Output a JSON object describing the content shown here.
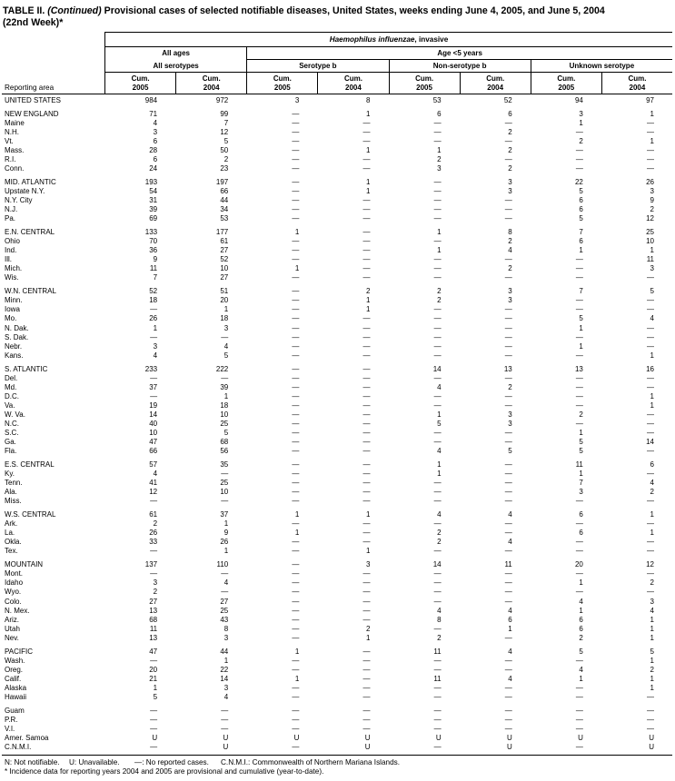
{
  "title": {
    "table_label": "TABLE II.",
    "continued": "(Continued)",
    "text": "Provisional cases of selected notifiable diseases, United States, weeks ending June 4, 2005, and June 5, 2004",
    "line2": "(22nd Week)*"
  },
  "table": {
    "disease_name_italic": "Haemophilus influenzae",
    "disease_name_suffix": ", invasive",
    "col_group_all_ages": "All ages",
    "col_group_age_under5": "Age <5 years",
    "subgroups": [
      "All serotypes",
      "Serotype b",
      "Non-serotype b",
      "Unknown serotype"
    ],
    "cum_label": "Cum.",
    "years": [
      "2005",
      "2004",
      "2005",
      "2004",
      "2005",
      "2004",
      "2005",
      "2004"
    ],
    "reporting_area_label": "Reporting area",
    "rows": [
      {
        "label": "UNITED STATES",
        "gap": false,
        "values": [
          "984",
          "972",
          "3",
          "8",
          "53",
          "52",
          "94",
          "97"
        ]
      },
      {
        "label": "NEW ENGLAND",
        "gap": true,
        "values": [
          "71",
          "99",
          "—",
          "1",
          "6",
          "6",
          "3",
          "1"
        ]
      },
      {
        "label": "Maine",
        "gap": false,
        "values": [
          "4",
          "7",
          "—",
          "—",
          "—",
          "—",
          "1",
          "—"
        ]
      },
      {
        "label": "N.H.",
        "gap": false,
        "values": [
          "3",
          "12",
          "—",
          "—",
          "—",
          "2",
          "—",
          "—"
        ]
      },
      {
        "label": "Vt.",
        "gap": false,
        "values": [
          "6",
          "5",
          "—",
          "—",
          "—",
          "—",
          "2",
          "1"
        ]
      },
      {
        "label": "Mass.",
        "gap": false,
        "values": [
          "28",
          "50",
          "—",
          "1",
          "1",
          "2",
          "—",
          "—"
        ]
      },
      {
        "label": "R.I.",
        "gap": false,
        "values": [
          "6",
          "2",
          "—",
          "—",
          "2",
          "—",
          "—",
          "—"
        ]
      },
      {
        "label": "Conn.",
        "gap": false,
        "values": [
          "24",
          "23",
          "—",
          "—",
          "3",
          "2",
          "—",
          "—"
        ]
      },
      {
        "label": "MID. ATLANTIC",
        "gap": true,
        "values": [
          "193",
          "197",
          "—",
          "1",
          "—",
          "3",
          "22",
          "26"
        ]
      },
      {
        "label": "Upstate N.Y.",
        "gap": false,
        "values": [
          "54",
          "66",
          "—",
          "1",
          "—",
          "3",
          "5",
          "3"
        ]
      },
      {
        "label": "N.Y. City",
        "gap": false,
        "values": [
          "31",
          "44",
          "—",
          "—",
          "—",
          "—",
          "6",
          "9"
        ]
      },
      {
        "label": "N.J.",
        "gap": false,
        "values": [
          "39",
          "34",
          "—",
          "—",
          "—",
          "—",
          "6",
          "2"
        ]
      },
      {
        "label": "Pa.",
        "gap": false,
        "values": [
          "69",
          "53",
          "—",
          "—",
          "—",
          "—",
          "5",
          "12"
        ]
      },
      {
        "label": "E.N. CENTRAL",
        "gap": true,
        "values": [
          "133",
          "177",
          "1",
          "—",
          "1",
          "8",
          "7",
          "25"
        ]
      },
      {
        "label": "Ohio",
        "gap": false,
        "values": [
          "70",
          "61",
          "—",
          "—",
          "—",
          "2",
          "6",
          "10"
        ]
      },
      {
        "label": "Ind.",
        "gap": false,
        "values": [
          "36",
          "27",
          "—",
          "—",
          "1",
          "4",
          "1",
          "1"
        ]
      },
      {
        "label": "Ill.",
        "gap": false,
        "values": [
          "9",
          "52",
          "—",
          "—",
          "—",
          "—",
          "—",
          "11"
        ]
      },
      {
        "label": "Mich.",
        "gap": false,
        "values": [
          "11",
          "10",
          "1",
          "—",
          "—",
          "2",
          "—",
          "3"
        ]
      },
      {
        "label": "Wis.",
        "gap": false,
        "values": [
          "7",
          "27",
          "—",
          "—",
          "—",
          "—",
          "—",
          "—"
        ]
      },
      {
        "label": "W.N. CENTRAL",
        "gap": true,
        "values": [
          "52",
          "51",
          "—",
          "2",
          "2",
          "3",
          "7",
          "5"
        ]
      },
      {
        "label": "Minn.",
        "gap": false,
        "values": [
          "18",
          "20",
          "—",
          "1",
          "2",
          "3",
          "—",
          "—"
        ]
      },
      {
        "label": "Iowa",
        "gap": false,
        "values": [
          "—",
          "1",
          "—",
          "1",
          "—",
          "—",
          "—",
          "—"
        ]
      },
      {
        "label": "Mo.",
        "gap": false,
        "values": [
          "26",
          "18",
          "—",
          "—",
          "—",
          "—",
          "5",
          "4"
        ]
      },
      {
        "label": "N. Dak.",
        "gap": false,
        "values": [
          "1",
          "3",
          "—",
          "—",
          "—",
          "—",
          "1",
          "—"
        ]
      },
      {
        "label": "S. Dak.",
        "gap": false,
        "values": [
          "—",
          "—",
          "—",
          "—",
          "—",
          "—",
          "—",
          "—"
        ]
      },
      {
        "label": "Nebr.",
        "gap": false,
        "values": [
          "3",
          "4",
          "—",
          "—",
          "—",
          "—",
          "1",
          "—"
        ]
      },
      {
        "label": "Kans.",
        "gap": false,
        "values": [
          "4",
          "5",
          "—",
          "—",
          "—",
          "—",
          "—",
          "1"
        ]
      },
      {
        "label": "S. ATLANTIC",
        "gap": true,
        "values": [
          "233",
          "222",
          "—",
          "—",
          "14",
          "13",
          "13",
          "16"
        ]
      },
      {
        "label": "Del.",
        "gap": false,
        "values": [
          "—",
          "—",
          "—",
          "—",
          "—",
          "—",
          "—",
          "—"
        ]
      },
      {
        "label": "Md.",
        "gap": false,
        "values": [
          "37",
          "39",
          "—",
          "—",
          "4",
          "2",
          "—",
          "—"
        ]
      },
      {
        "label": "D.C.",
        "gap": false,
        "values": [
          "—",
          "1",
          "—",
          "—",
          "—",
          "—",
          "—",
          "1"
        ]
      },
      {
        "label": "Va.",
        "gap": false,
        "values": [
          "19",
          "18",
          "—",
          "—",
          "—",
          "—",
          "—",
          "1"
        ]
      },
      {
        "label": "W. Va.",
        "gap": false,
        "values": [
          "14",
          "10",
          "—",
          "—",
          "1",
          "3",
          "2",
          "—"
        ]
      },
      {
        "label": "N.C.",
        "gap": false,
        "values": [
          "40",
          "25",
          "—",
          "—",
          "5",
          "3",
          "—",
          "—"
        ]
      },
      {
        "label": "S.C.",
        "gap": false,
        "values": [
          "10",
          "5",
          "—",
          "—",
          "—",
          "—",
          "1",
          "—"
        ]
      },
      {
        "label": "Ga.",
        "gap": false,
        "values": [
          "47",
          "68",
          "—",
          "—",
          "—",
          "—",
          "5",
          "14"
        ]
      },
      {
        "label": "Fla.",
        "gap": false,
        "values": [
          "66",
          "56",
          "—",
          "—",
          "4",
          "5",
          "5",
          "—"
        ]
      },
      {
        "label": "E.S. CENTRAL",
        "gap": true,
        "values": [
          "57",
          "35",
          "—",
          "—",
          "1",
          "—",
          "11",
          "6"
        ]
      },
      {
        "label": "Ky.",
        "gap": false,
        "values": [
          "4",
          "—",
          "—",
          "—",
          "1",
          "—",
          "1",
          "—"
        ]
      },
      {
        "label": "Tenn.",
        "gap": false,
        "values": [
          "41",
          "25",
          "—",
          "—",
          "—",
          "—",
          "7",
          "4"
        ]
      },
      {
        "label": "Ala.",
        "gap": false,
        "values": [
          "12",
          "10",
          "—",
          "—",
          "—",
          "—",
          "3",
          "2"
        ]
      },
      {
        "label": "Miss.",
        "gap": false,
        "values": [
          "—",
          "—",
          "—",
          "—",
          "—",
          "—",
          "—",
          "—"
        ]
      },
      {
        "label": "W.S. CENTRAL",
        "gap": true,
        "values": [
          "61",
          "37",
          "1",
          "1",
          "4",
          "4",
          "6",
          "1"
        ]
      },
      {
        "label": "Ark.",
        "gap": false,
        "values": [
          "2",
          "1",
          "—",
          "—",
          "—",
          "—",
          "—",
          "—"
        ]
      },
      {
        "label": "La.",
        "gap": false,
        "values": [
          "26",
          "9",
          "1",
          "—",
          "2",
          "—",
          "6",
          "1"
        ]
      },
      {
        "label": "Okla.",
        "gap": false,
        "values": [
          "33",
          "26",
          "—",
          "—",
          "2",
          "4",
          "—",
          "—"
        ]
      },
      {
        "label": "Tex.",
        "gap": false,
        "values": [
          "—",
          "1",
          "—",
          "1",
          "—",
          "—",
          "—",
          "—"
        ]
      },
      {
        "label": "MOUNTAIN",
        "gap": true,
        "values": [
          "137",
          "110",
          "—",
          "3",
          "14",
          "11",
          "20",
          "12"
        ]
      },
      {
        "label": "Mont.",
        "gap": false,
        "values": [
          "—",
          "—",
          "—",
          "—",
          "—",
          "—",
          "—",
          "—"
        ]
      },
      {
        "label": "Idaho",
        "gap": false,
        "values": [
          "3",
          "4",
          "—",
          "—",
          "—",
          "—",
          "1",
          "2"
        ]
      },
      {
        "label": "Wyo.",
        "gap": false,
        "values": [
          "2",
          "—",
          "—",
          "—",
          "—",
          "—",
          "—",
          "—"
        ]
      },
      {
        "label": "Colo.",
        "gap": false,
        "values": [
          "27",
          "27",
          "—",
          "—",
          "—",
          "—",
          "4",
          "3"
        ]
      },
      {
        "label": "N. Mex.",
        "gap": false,
        "values": [
          "13",
          "25",
          "—",
          "—",
          "4",
          "4",
          "1",
          "4"
        ]
      },
      {
        "label": "Ariz.",
        "gap": false,
        "values": [
          "68",
          "43",
          "—",
          "—",
          "8",
          "6",
          "6",
          "1"
        ]
      },
      {
        "label": "Utah",
        "gap": false,
        "values": [
          "11",
          "8",
          "—",
          "2",
          "—",
          "1",
          "6",
          "1"
        ]
      },
      {
        "label": "Nev.",
        "gap": false,
        "values": [
          "13",
          "3",
          "—",
          "1",
          "2",
          "—",
          "2",
          "1"
        ]
      },
      {
        "label": "PACIFIC",
        "gap": true,
        "values": [
          "47",
          "44",
          "1",
          "—",
          "11",
          "4",
          "5",
          "5"
        ]
      },
      {
        "label": "Wash.",
        "gap": false,
        "values": [
          "—",
          "1",
          "—",
          "—",
          "—",
          "—",
          "—",
          "1"
        ]
      },
      {
        "label": "Oreg.",
        "gap": false,
        "values": [
          "20",
          "22",
          "—",
          "—",
          "—",
          "—",
          "4",
          "2"
        ]
      },
      {
        "label": "Calif.",
        "gap": false,
        "values": [
          "21",
          "14",
          "1",
          "—",
          "11",
          "4",
          "1",
          "1"
        ]
      },
      {
        "label": "Alaska",
        "gap": false,
        "values": [
          "1",
          "3",
          "—",
          "—",
          "—",
          "—",
          "—",
          "1"
        ]
      },
      {
        "label": "Hawaii",
        "gap": false,
        "values": [
          "5",
          "4",
          "—",
          "—",
          "—",
          "—",
          "—",
          "—"
        ]
      },
      {
        "label": "Guam",
        "gap": true,
        "values": [
          "—",
          "—",
          "—",
          "—",
          "—",
          "—",
          "—",
          "—"
        ]
      },
      {
        "label": "P.R.",
        "gap": false,
        "values": [
          "—",
          "—",
          "—",
          "—",
          "—",
          "—",
          "—",
          "—"
        ]
      },
      {
        "label": "V.I.",
        "gap": false,
        "values": [
          "—",
          "—",
          "—",
          "—",
          "—",
          "—",
          "—",
          "—"
        ]
      },
      {
        "label": "Amer. Samoa",
        "gap": false,
        "values": [
          "U",
          "U",
          "U",
          "U",
          "U",
          "U",
          "U",
          "U"
        ]
      },
      {
        "label": "C.N.M.I.",
        "gap": false,
        "values": [
          "—",
          "U",
          "—",
          "U",
          "—",
          "U",
          "—",
          "U"
        ]
      }
    ]
  },
  "footnotes": {
    "n": "N: Not notifiable.",
    "u": "U: Unavailable.",
    "dash": "—: No reported cases.",
    "cnmi": "C.N.M.I.: Commonwealth of Northern Mariana Islands.",
    "asterisk": "* Incidence data for reporting years 2004 and 2005 are provisional and cumulative (year-to-date)."
  }
}
